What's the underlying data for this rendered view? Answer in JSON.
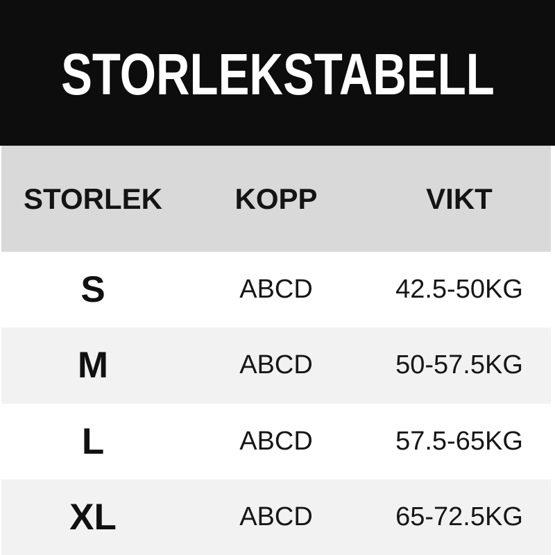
{
  "title": "STORLEKSTABELL",
  "table": {
    "columns": [
      {
        "key": "size",
        "label": "STORLEK"
      },
      {
        "key": "cup",
        "label": "KOPP"
      },
      {
        "key": "weight",
        "label": "VIKT"
      }
    ],
    "rows": [
      {
        "size": "S",
        "cup": "ABCD",
        "weight": "42.5-50KG"
      },
      {
        "size": "M",
        "cup": "ABCD",
        "weight": "50-57.5KG"
      },
      {
        "size": "L",
        "cup": "ABCD",
        "weight": "57.5-65KG"
      },
      {
        "size": "XL",
        "cup": "ABCD",
        "weight": "65-72.5KG"
      }
    ]
  },
  "colors": {
    "banner_background": "#0d0d0d",
    "title_text": "#ffffff",
    "header_band": "#d9d9d9",
    "row_default": "#ffffff",
    "row_alternate": "#f2f2f2",
    "body_text": "#141414"
  }
}
